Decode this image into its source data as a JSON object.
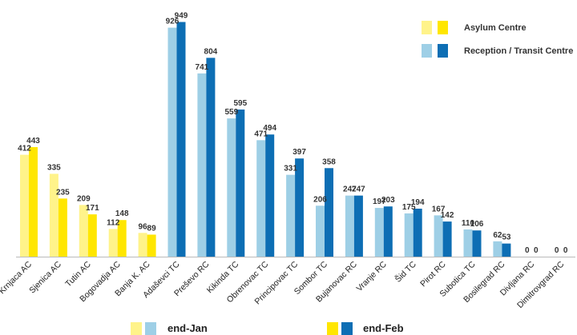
{
  "chart_data": {
    "type": "bar",
    "categories": [
      "Krnjaca AC",
      "Sjenica AC",
      "Tutin AC",
      "Bogovadja AC",
      "Banja K. AC",
      "Adaševci TC",
      "Preševo RC",
      "Kikinda TC",
      "Obrenovac TC",
      "Principovac TC",
      "Sombor TC",
      "Bujanovac RC",
      "Vranje RC",
      "Šid TC",
      "Pirot RC",
      "Subotica TC",
      "Bosilegrad RC",
      "Divljana RC",
      "Dimitrovgrad RC"
    ],
    "category_kind": [
      "asylum",
      "asylum",
      "asylum",
      "asylum",
      "asylum",
      "reception",
      "reception",
      "reception",
      "reception",
      "reception",
      "reception",
      "reception",
      "reception",
      "reception",
      "reception",
      "reception",
      "reception",
      "reception",
      "reception"
    ],
    "series": [
      {
        "name": "end-Jan",
        "values": [
          412,
          335,
          209,
          112,
          96,
          926,
          741,
          559,
          471,
          331,
          206,
          247,
          197,
          175,
          167,
          110,
          62,
          0,
          0
        ]
      },
      {
        "name": "end-Feb",
        "values": [
          443,
          235,
          171,
          148,
          89,
          949,
          804,
          595,
          494,
          397,
          358,
          247,
          203,
          194,
          142,
          106,
          53,
          0,
          0
        ]
      }
    ],
    "ylim": [
      0,
      1000
    ],
    "grid": false,
    "colors": {
      "asylum_jan": "#FFF38A",
      "asylum_feb": "#FFE600",
      "reception_jan": "#9ECFE6",
      "reception_feb": "#0D6EB4",
      "axis": "#BBBBBB"
    }
  },
  "legend_top": [
    {
      "label": "Asylum Centre",
      "colors": [
        "#FFF38A",
        "#FFE600"
      ]
    },
    {
      "label": "Reception / Transit Centre",
      "colors": [
        "#9ECFE6",
        "#0D6EB4"
      ]
    }
  ],
  "legend_bottom": [
    {
      "label": "end-Jan",
      "colors": [
        "#FFF38A",
        "#9ECFE6"
      ]
    },
    {
      "label": "end-Feb",
      "colors": [
        "#FFE600",
        "#0D6EB4"
      ]
    }
  ]
}
